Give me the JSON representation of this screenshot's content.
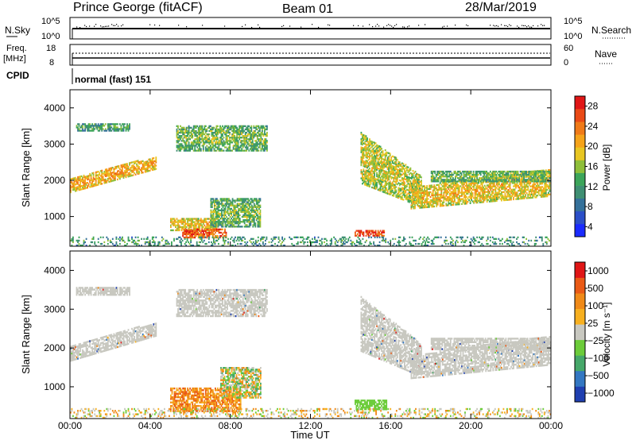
{
  "header": {
    "station": "Prince George (fitACF)",
    "beam": "Beam 01",
    "date": "28/Mar/2019"
  },
  "top_strip": {
    "nsky_label": "N.Sky",
    "nsky_ticks": [
      "10^5",
      "10^0"
    ],
    "nsearch_label": "N.Search",
    "nsearch_ticks": [
      "10^5",
      "10^0"
    ],
    "freq_label": "Freq.",
    "freq_unit": "[MHz]",
    "freq_ticks": [
      "18",
      "8"
    ],
    "nave_label": "Nave",
    "nave_ticks": [
      "60",
      "0"
    ],
    "cpid_label": "CPID",
    "cpid_value": "normal (fast) 151"
  },
  "chart_data": [
    {
      "type": "heatmap",
      "name": "power",
      "ylabel": "Slant Range [km]",
      "ylim": [
        180,
        4500
      ],
      "yticks": [
        "4000",
        "3000",
        "2000",
        "1000"
      ],
      "xlim": [
        0,
        24
      ],
      "colorbar": {
        "label": "Power [dB]",
        "ticks": [
          "28",
          "24",
          "20",
          "16",
          "12",
          "8",
          "4"
        ],
        "range": [
          0,
          32
        ],
        "colors": [
          "#1a2bff",
          "#2b4fc8",
          "#35719a",
          "#3f8f73",
          "#3ca55a",
          "#8fbf3a",
          "#e8c622",
          "#f5a31a",
          "#f07a18",
          "#ea4a16",
          "#e01616"
        ]
      },
      "regions": [
        {
          "t0": 0.0,
          "t1": 4.3,
          "r0": 1650,
          "r1": 2050,
          "r0_end": 2300,
          "r1_end": 2650,
          "level": 20
        },
        {
          "t0": 0.3,
          "t1": 3.0,
          "r0": 3350,
          "r1": 3550,
          "level": 10
        },
        {
          "t0": 5.3,
          "t1": 9.8,
          "r0": 2800,
          "r1": 3500,
          "level": 12
        },
        {
          "t0": 5.0,
          "t1": 7.3,
          "r0": 600,
          "r1": 950,
          "level": 18
        },
        {
          "t0": 7.0,
          "t1": 9.5,
          "r0": 700,
          "r1": 1500,
          "level": 12
        },
        {
          "t0": 5.6,
          "t1": 7.8,
          "r0": 400,
          "r1": 650,
          "level": 26
        },
        {
          "t0": 14.2,
          "t1": 15.7,
          "r0": 450,
          "r1": 620,
          "level": 28
        },
        {
          "t0": 14.5,
          "t1": 17.5,
          "r0": 1900,
          "r1": 3300,
          "r0_end": 1250,
          "r1_end": 2100,
          "level": 16
        },
        {
          "t0": 17.0,
          "t1": 24.0,
          "r0": 1200,
          "r1": 1800,
          "r0_end": 1550,
          "r1_end": 2300,
          "level": 18
        },
        {
          "t0": 18.0,
          "t1": 24.0,
          "r0": 1950,
          "r1": 2250,
          "level": 12
        },
        {
          "t0": 0.0,
          "t1": 24.0,
          "r0": 180,
          "r1": 420,
          "level": 9
        }
      ]
    },
    {
      "type": "heatmap",
      "name": "velocity",
      "ylabel": "Slant Range [km]",
      "ylim": [
        180,
        4500
      ],
      "yticks": [
        "4000",
        "3000",
        "2000",
        "1000"
      ],
      "xlim": [
        0,
        24
      ],
      "xticks": [
        "00:00",
        "04:00",
        "08:00",
        "12:00",
        "16:00",
        "20:00",
        "00:00"
      ],
      "xlabel": "Time UT",
      "colorbar": {
        "label": "Velocity [m s⁻¹]",
        "ticks": [
          "1000",
          "500",
          "100",
          "25",
          "−25",
          "−100",
          "−500",
          "−1000"
        ],
        "colors": [
          "#1f3fb0",
          "#3377c2",
          "#46a86a",
          "#6ccc3a",
          "#c8c8c0",
          "#f7b020",
          "#f08a18",
          "#ea5a16",
          "#e01616"
        ]
      },
      "regions": [
        {
          "t0": 0.0,
          "t1": 4.3,
          "r0": 1650,
          "r1": 2050,
          "r0_end": 2300,
          "r1_end": 2650,
          "class": "ground"
        },
        {
          "t0": 0.3,
          "t1": 3.0,
          "r0": 3350,
          "r1": 3550,
          "class": "ground"
        },
        {
          "t0": 5.3,
          "t1": 9.8,
          "r0": 2800,
          "r1": 3500,
          "class": "ground"
        },
        {
          "t0": 5.0,
          "t1": 8.5,
          "r0": 350,
          "r1": 950,
          "class": "away"
        },
        {
          "t0": 7.5,
          "t1": 9.5,
          "r0": 700,
          "r1": 1500,
          "class": "mixed"
        },
        {
          "t0": 14.2,
          "t1": 15.8,
          "r0": 400,
          "r1": 650,
          "class": "toward"
        },
        {
          "t0": 14.5,
          "t1": 17.5,
          "r0": 1900,
          "r1": 3300,
          "r0_end": 1250,
          "r1_end": 2100,
          "class": "ground"
        },
        {
          "t0": 17.0,
          "t1": 24.0,
          "r0": 1200,
          "r1": 1800,
          "r0_end": 1550,
          "r1_end": 2300,
          "class": "ground"
        },
        {
          "t0": 18.0,
          "t1": 24.0,
          "r0": 1950,
          "r1": 2250,
          "class": "ground"
        },
        {
          "t0": 0.0,
          "t1": 24.0,
          "r0": 180,
          "r1": 420,
          "class": "noise"
        }
      ]
    }
  ]
}
